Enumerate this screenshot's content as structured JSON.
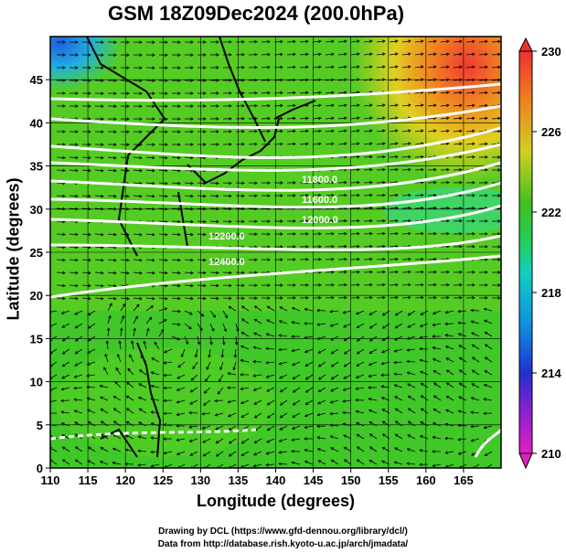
{
  "title": "GSM 18Z09Dec2024 (200.0hPa)",
  "xlabel": "Longitude (degrees)",
  "ylabel": "Latitude  (degrees)",
  "credits": [
    "Drawing by DCL (https://www.gfd-dennou.org/library/dcl/)",
    "Data from http://database.rish.kyoto-u.ac.jp/arch/jmadata/"
  ],
  "map": {
    "lon_range": [
      110,
      170
    ],
    "lat_range": [
      0,
      50
    ],
    "x_ticks": [
      110,
      115,
      120,
      125,
      130,
      135,
      140,
      145,
      150,
      155,
      160,
      165
    ],
    "y_ticks": [
      0,
      5,
      10,
      15,
      20,
      25,
      30,
      35,
      40,
      45
    ],
    "grid": true,
    "contour_labels": [
      "12200.0",
      "12400.0",
      "11800.0",
      "11600.0",
      "12000.0"
    ]
  },
  "colorbar": {
    "ticks": [
      210,
      214,
      218,
      222,
      226,
      230
    ],
    "colors": {
      "low": "#e020c0",
      "mid_low": "#2030d0",
      "mid": "#10d0c0",
      "mid_high": "#40c020",
      "high": "#f08020",
      "top": "#f03030"
    }
  }
}
